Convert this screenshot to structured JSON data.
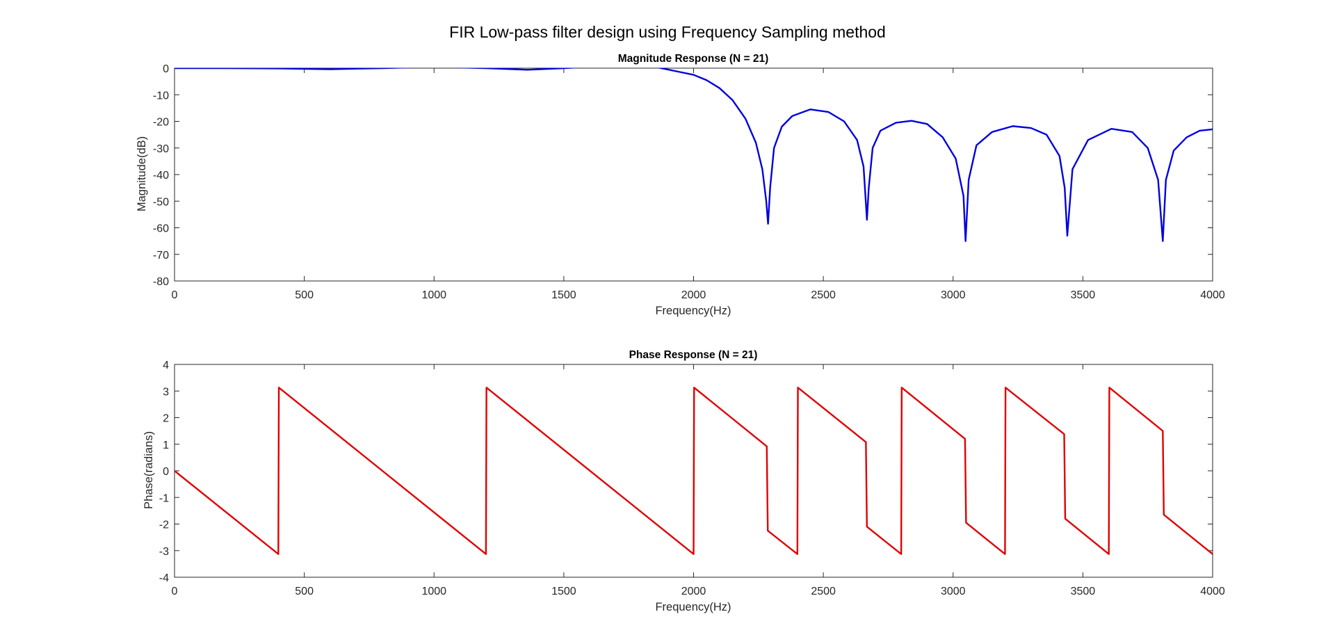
{
  "figure": {
    "suptitle": "FIR Low-pass filter design using Frequency Sampling method"
  },
  "chart_data": [
    {
      "type": "line",
      "title": "Magnitude Response (N = 21)",
      "xlabel": "Frequency(Hz)",
      "ylabel": "Magnitude(dB)",
      "xlim": [
        0,
        4000
      ],
      "ylim": [
        -80,
        0
      ],
      "xticks": [
        0,
        500,
        1000,
        1500,
        2000,
        2500,
        3000,
        3500,
        4000
      ],
      "yticks": [
        0,
        -10,
        -20,
        -30,
        -40,
        -50,
        -60,
        -70,
        -80
      ],
      "grid": false,
      "series": [
        {
          "color": "#0000e0",
          "x": [
            0,
            200,
            400,
            600,
            800,
            1000,
            1200,
            1360,
            1500,
            1600,
            1750,
            1850,
            1950,
            2000,
            2050,
            2100,
            2150,
            2200,
            2240,
            2265,
            2280,
            2287,
            2295,
            2310,
            2340,
            2380,
            2450,
            2520,
            2580,
            2630,
            2655,
            2668,
            2675,
            2690,
            2720,
            2780,
            2840,
            2900,
            2960,
            3010,
            3040,
            3048,
            3060,
            3090,
            3150,
            3230,
            3300,
            3360,
            3410,
            3430,
            3440,
            3460,
            3520,
            3610,
            3690,
            3750,
            3790,
            3808,
            3820,
            3850,
            3900,
            3950,
            4000
          ],
          "y": [
            0,
            0,
            -0.1,
            -0.4,
            0,
            0.5,
            0,
            -0.6,
            0,
            0.5,
            1.2,
            0.5,
            -1.5,
            -2.5,
            -4.5,
            -7.5,
            -12,
            -19,
            -28,
            -38,
            -50,
            -58.5,
            -45,
            -30,
            -22,
            -18,
            -15.5,
            -16.5,
            -20,
            -27,
            -37,
            -57,
            -45,
            -30,
            -23.5,
            -20.5,
            -19.8,
            -21,
            -26,
            -34,
            -48,
            -65,
            -42,
            -29,
            -24,
            -21.8,
            -22.5,
            -25,
            -33,
            -45,
            -63,
            -38,
            -27,
            -22.8,
            -24,
            -30,
            -42,
            -65,
            -42,
            -31,
            -26,
            -23.5,
            -23
          ]
        }
      ]
    },
    {
      "type": "line",
      "title": "Phase Response (N = 21)",
      "xlabel": "Frequency(Hz)",
      "ylabel": "Phase(radians)",
      "xlim": [
        0,
        4000
      ],
      "ylim": [
        -4,
        4
      ],
      "xticks": [
        0,
        500,
        1000,
        1500,
        2000,
        2500,
        3000,
        3500,
        4000
      ],
      "yticks": [
        4,
        3,
        2,
        1,
        0,
        -1,
        -2,
        -3,
        -4
      ],
      "grid": false,
      "series": [
        {
          "color": "#e00000",
          "x": [
            0,
            400,
            402,
            1200,
            1202,
            2000,
            2002,
            2282,
            2286,
            2400,
            2402,
            2664,
            2668,
            2800,
            2802,
            3046,
            3050,
            3200,
            3202,
            3428,
            3432,
            3600,
            3602,
            3808,
            3812,
            4000
          ],
          "y": [
            0,
            -3.13,
            3.13,
            -3.13,
            3.13,
            -3.13,
            3.13,
            0.92,
            -2.25,
            -3.13,
            3.13,
            1.08,
            -2.1,
            -3.13,
            3.13,
            1.2,
            -1.95,
            -3.13,
            3.13,
            1.38,
            -1.8,
            -3.13,
            3.13,
            1.5,
            -1.65,
            -3.13
          ]
        }
      ]
    }
  ]
}
